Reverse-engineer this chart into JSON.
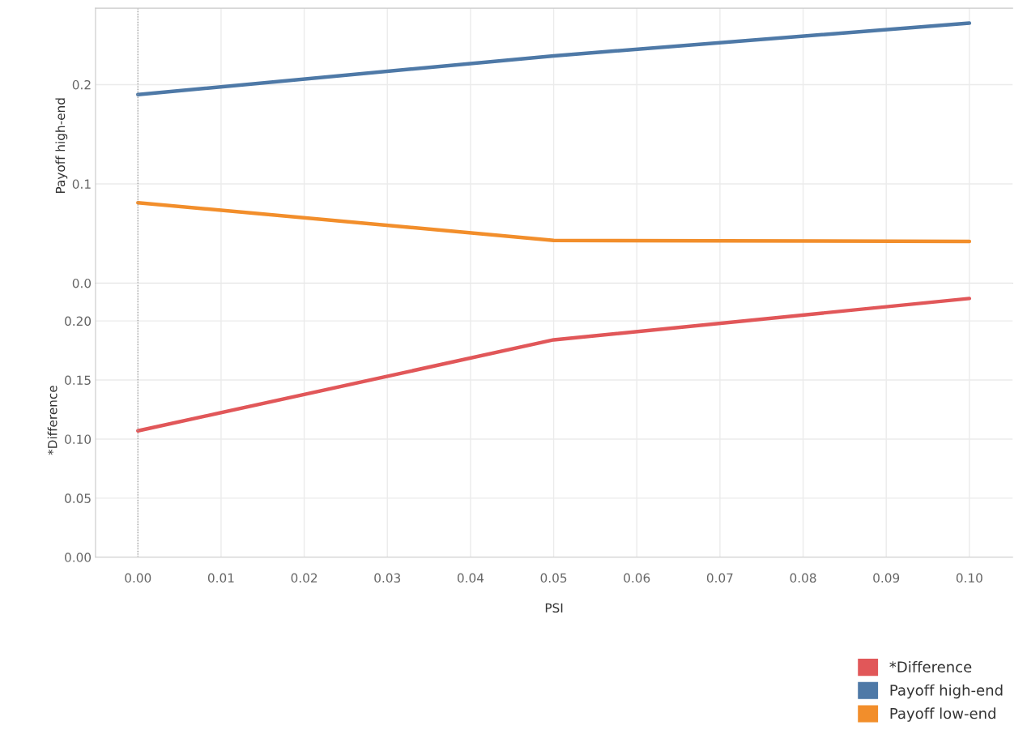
{
  "chart_data": [
    {
      "type": "line",
      "ylabel": "Payoff high-end",
      "x": [
        0,
        0.05,
        0.1
      ],
      "series": [
        {
          "name": "Payoff high-end",
          "color": "#4e79a7",
          "values": [
            0.19,
            0.229,
            0.262
          ]
        },
        {
          "name": "Payoff low-end",
          "color": "#f28e2b",
          "values": [
            0.081,
            0.043,
            0.042
          ]
        }
      ],
      "xlim": [
        -0.0051,
        0.1052
      ],
      "xticks": [
        0.0,
        0.01,
        0.02,
        0.03,
        0.04,
        0.05,
        0.06,
        0.07,
        0.08,
        0.09,
        0.1
      ],
      "ylim": [
        0,
        0.277
      ],
      "yticks": [
        {
          "value": 0,
          "label": "0.0"
        },
        0.1,
        0.2
      ],
      "tick_labels": "y",
      "grid": true,
      "legend": "bottom right",
      "ref_lines": [
        {
          "axis": "x",
          "value": 0,
          "line_style": "dotted",
          "color": "#999999"
        }
      ]
    },
    {
      "type": "line",
      "ylabel": "*Difference",
      "xlabel": "PSI",
      "x": [
        0,
        0.05,
        0.1
      ],
      "series": [
        {
          "name": "*Difference",
          "color": "#e15759",
          "values": [
            0.107,
            0.184,
            0.219
          ]
        }
      ],
      "xlim": [
        -0.0051,
        0.1052
      ],
      "xticks": [
        {
          "value": 0,
          "label": "0.00"
        },
        0.01,
        0.02,
        0.03,
        0.04,
        0.05,
        0.06,
        0.07,
        0.08,
        0.09,
        {
          "value": 0.1,
          "label": "0.10"
        }
      ],
      "ylim": [
        0,
        0.232
      ],
      "yticks": [
        {
          "value": 0,
          "label": "0.00"
        },
        0.05,
        {
          "value": 0.1,
          "label": "0.10"
        },
        0.15,
        {
          "value": 0.2,
          "label": "0.20"
        }
      ],
      "grid": true,
      "legend": "bottom right",
      "ref_lines": [
        {
          "axis": "x",
          "value": 0,
          "line_style": "dotted",
          "color": "#999999"
        }
      ]
    }
  ]
}
